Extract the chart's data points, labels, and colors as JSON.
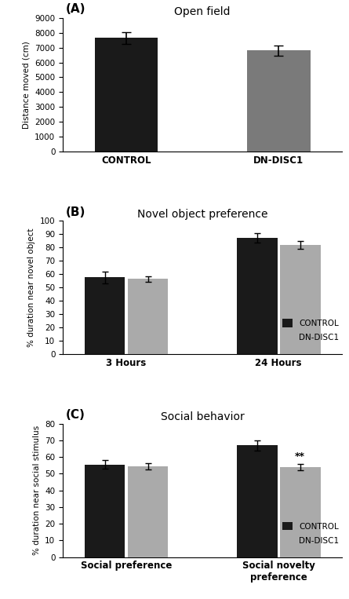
{
  "panel_A": {
    "title": "Open field",
    "label": "(A)",
    "categories": [
      "CONTROL",
      "DN-DISC1"
    ],
    "values": [
      7650,
      6800
    ],
    "errors": [
      400,
      350
    ],
    "colors": [
      "#1a1a1a",
      "#7a7a7a"
    ],
    "ylabel": "Distance moved (cm)",
    "ylim": [
      0,
      9000
    ],
    "yticks": [
      0,
      1000,
      2000,
      3000,
      4000,
      5000,
      6000,
      7000,
      8000,
      9000
    ]
  },
  "panel_B": {
    "title": "Novel object preference",
    "label": "(B)",
    "groups": [
      "3 Hours",
      "24 Hours"
    ],
    "control_values": [
      57.5,
      87.0
    ],
    "disc1_values": [
      56.5,
      82.0
    ],
    "control_errors": [
      4.5,
      3.5
    ],
    "disc1_errors": [
      2.0,
      3.0
    ],
    "colors": [
      "#1a1a1a",
      "#aaaaaa"
    ],
    "ylabel": "% duration near novel object",
    "ylim": [
      0,
      100
    ],
    "yticks": [
      0,
      10,
      20,
      30,
      40,
      50,
      60,
      70,
      80,
      90,
      100
    ],
    "legend_labels": [
      "CONTROL",
      "DN-DISC1"
    ]
  },
  "panel_C": {
    "title": "Social behavior",
    "label": "(C)",
    "groups": [
      "Social preference",
      "Social novelty\npreference"
    ],
    "control_values": [
      55.5,
      67.0
    ],
    "disc1_values": [
      54.5,
      54.0
    ],
    "control_errors": [
      2.5,
      3.0
    ],
    "disc1_errors": [
      2.0,
      2.0
    ],
    "colors": [
      "#1a1a1a",
      "#aaaaaa"
    ],
    "ylabel": "% duration near social stimulus",
    "ylim": [
      0,
      80
    ],
    "yticks": [
      0,
      10,
      20,
      30,
      40,
      50,
      60,
      70,
      80
    ],
    "legend_labels": [
      "CONTROL",
      "DN-DISC1"
    ],
    "annotation": "**",
    "annotation_group": 1
  },
  "bar_width": 0.32,
  "figsize": [
    4.45,
    7.63
  ],
  "dpi": 100,
  "bg_color": "#ffffff"
}
